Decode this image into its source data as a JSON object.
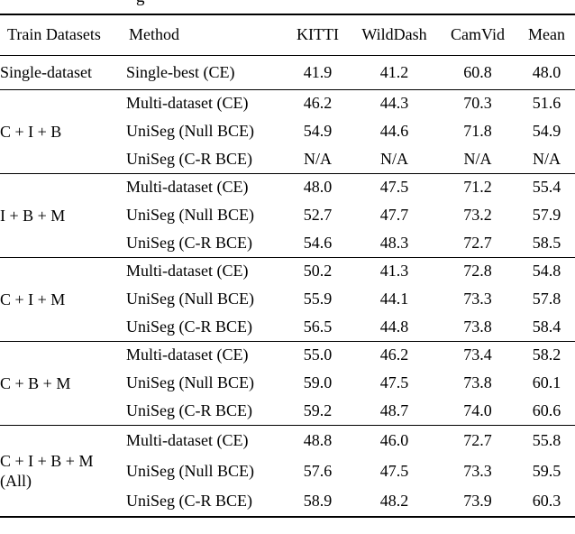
{
  "caption_fragment": "g",
  "colors": {
    "background": "#ffffff",
    "text": "#000000",
    "rule": "#000000"
  },
  "table": {
    "columns": [
      "Train Datasets",
      "Method",
      "KITTI",
      "WildDash",
      "CamVid",
      "Mean"
    ],
    "groups": [
      {
        "dataset_lines": [
          "Single-dataset"
        ],
        "rows": [
          {
            "method": "Single-best (CE)",
            "values": [
              "41.9",
              "41.2",
              "60.8",
              "48.0"
            ],
            "bold": [
              false,
              false,
              false,
              false
            ]
          }
        ]
      },
      {
        "dataset_lines": [
          "C + I + B"
        ],
        "rows": [
          {
            "method": "Multi-dataset (CE)",
            "values": [
              "46.2",
              "44.3",
              "70.3",
              "51.6"
            ],
            "bold": [
              false,
              false,
              false,
              false
            ]
          },
          {
            "method": "UniSeg (Null BCE)",
            "values": [
              "54.9",
              "44.6",
              "71.8",
              "54.9"
            ],
            "bold": [
              true,
              true,
              true,
              true
            ]
          },
          {
            "method": "UniSeg (C-R BCE)",
            "values": [
              "N/A",
              "N/A",
              "N/A",
              "N/A"
            ],
            "bold": [
              false,
              false,
              false,
              false
            ]
          }
        ]
      },
      {
        "dataset_lines": [
          "I + B + M"
        ],
        "rows": [
          {
            "method": "Multi-dataset (CE)",
            "values": [
              "48.0",
              "47.5",
              "71.2",
              "55.4"
            ],
            "bold": [
              false,
              false,
              false,
              false
            ]
          },
          {
            "method": "UniSeg (Null BCE)",
            "values": [
              "52.7",
              "47.7",
              "73.2",
              "57.9"
            ],
            "bold": [
              false,
              false,
              true,
              false
            ]
          },
          {
            "method": "UniSeg (C-R BCE)",
            "values": [
              "54.6",
              "48.3",
              "72.7",
              "58.5"
            ],
            "bold": [
              true,
              true,
              false,
              true
            ]
          }
        ]
      },
      {
        "dataset_lines": [
          "C + I + M"
        ],
        "rows": [
          {
            "method": "Multi-dataset (CE)",
            "values": [
              "50.2",
              "41.3",
              "72.8",
              "54.8"
            ],
            "bold": [
              false,
              false,
              false,
              false
            ]
          },
          {
            "method": "UniSeg (Null BCE)",
            "values": [
              "55.9",
              "44.1",
              "73.3",
              "57.8"
            ],
            "bold": [
              false,
              false,
              false,
              false
            ]
          },
          {
            "method": "UniSeg (C-R BCE)",
            "values": [
              "56.5",
              "44.8",
              "73.8",
              "58.4"
            ],
            "bold": [
              true,
              true,
              true,
              true
            ]
          }
        ]
      },
      {
        "dataset_lines": [
          "C + B + M"
        ],
        "rows": [
          {
            "method": "Multi-dataset (CE)",
            "values": [
              "55.0",
              "46.2",
              "73.4",
              "58.2"
            ],
            "bold": [
              false,
              false,
              false,
              false
            ]
          },
          {
            "method": "UniSeg (Null BCE)",
            "values": [
              "59.0",
              "47.5",
              "73.8",
              "60.1"
            ],
            "bold": [
              false,
              false,
              false,
              false
            ]
          },
          {
            "method": "UniSeg (C-R BCE)",
            "values": [
              "59.2",
              "48.7",
              "74.0",
              "60.6"
            ],
            "bold": [
              true,
              true,
              true,
              true
            ]
          }
        ]
      },
      {
        "dataset_lines": [
          "C + I + B + M",
          "(All)"
        ],
        "rows": [
          {
            "method": "Multi-dataset (CE)",
            "values": [
              "48.8",
              "46.0",
              "72.7",
              "55.8"
            ],
            "bold": [
              false,
              false,
              false,
              false
            ]
          },
          {
            "method": "UniSeg (Null BCE)",
            "values": [
              "57.6",
              "47.5",
              "73.3",
              "59.5"
            ],
            "bold": [
              false,
              false,
              false,
              false
            ]
          },
          {
            "method": "UniSeg (C-R BCE)",
            "values": [
              "58.9",
              "48.2",
              "73.9",
              "60.3"
            ],
            "bold": [
              true,
              true,
              true,
              true
            ]
          }
        ]
      }
    ]
  }
}
